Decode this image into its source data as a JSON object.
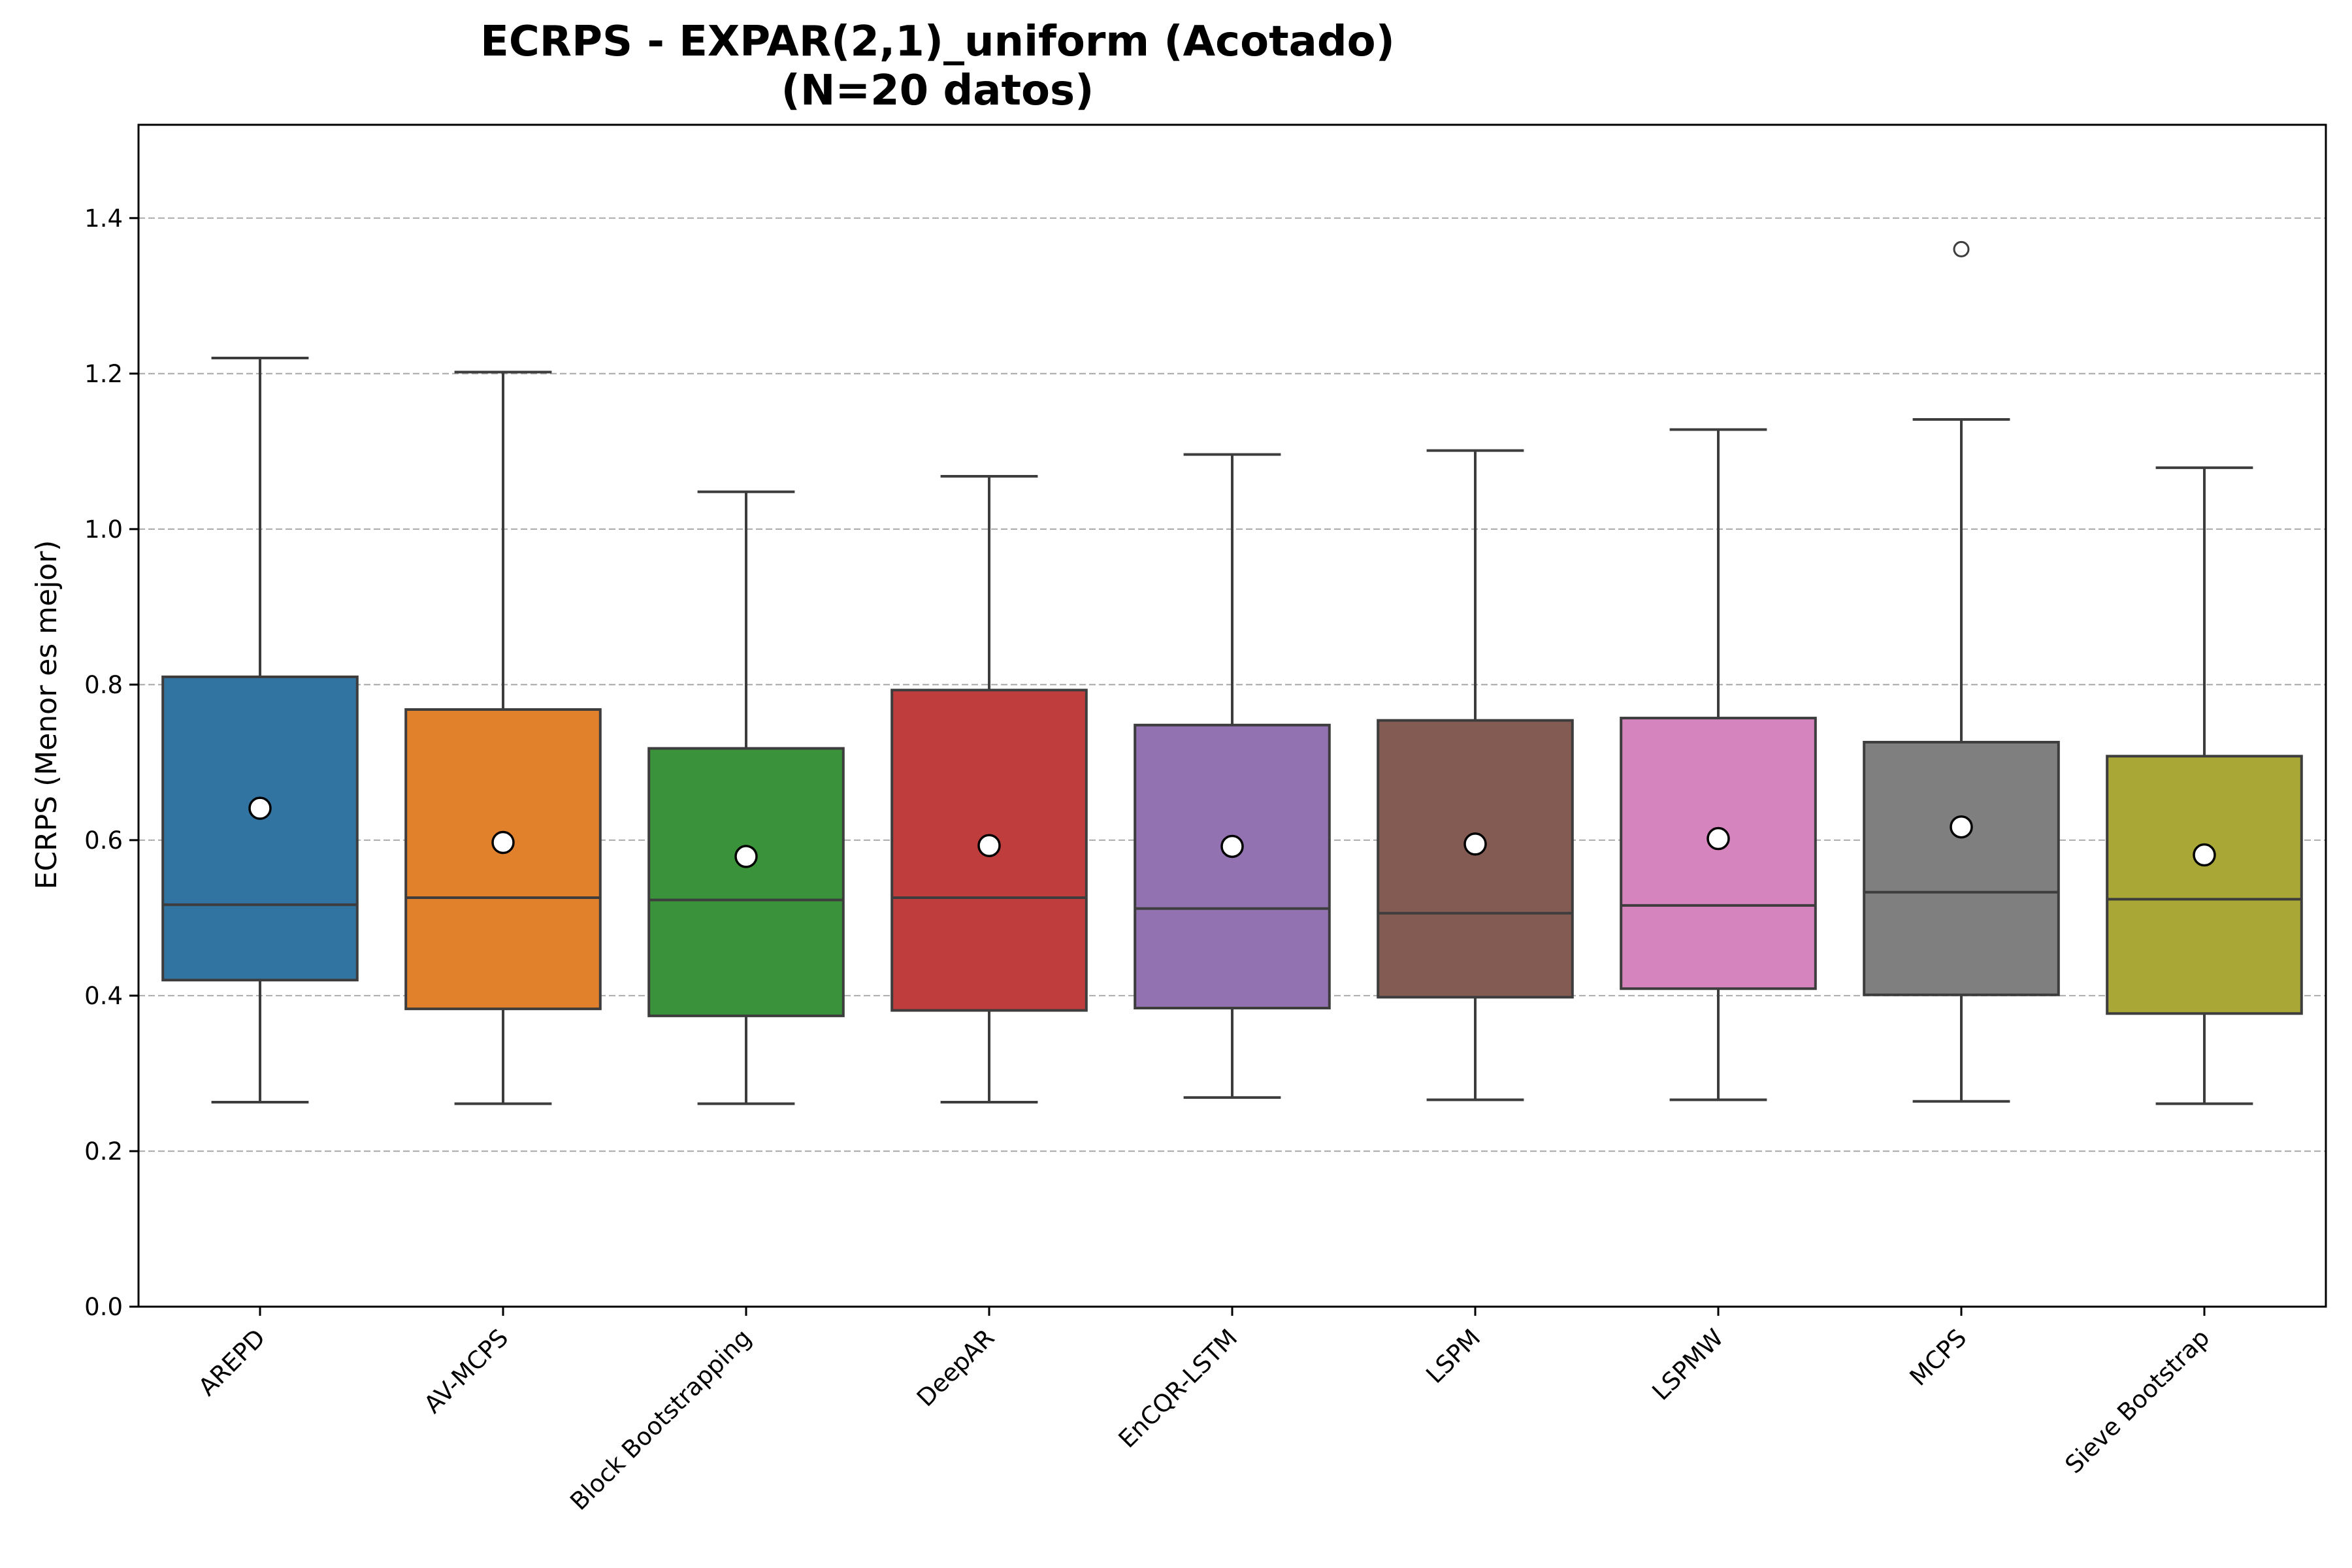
{
  "chart_data": {
    "type": "box",
    "title_line1": "ECRPS - EXPAR(2,1)_uniform (Acotado)",
    "title_line2": "(N=20 datos)",
    "xlabel": "",
    "ylabel": "ECRPS (Menor es mejor)",
    "ylim": [
      0,
      1.52
    ],
    "yticks": [
      "0.0",
      "0.2",
      "0.4",
      "0.6",
      "0.8",
      "1.0",
      "1.2",
      "1.4"
    ],
    "grid": "horizontal dashed",
    "series": [
      {
        "name": "AREPD",
        "color": "#3274a1",
        "whisker_low": 0.263,
        "q1": 0.42,
        "median": 0.517,
        "q3": 0.81,
        "whisker_high": 1.22,
        "mean": 0.641,
        "outliers": []
      },
      {
        "name": "AV-MCPS",
        "color": "#e1812c",
        "whisker_low": 0.261,
        "q1": 0.383,
        "median": 0.526,
        "q3": 0.768,
        "whisker_high": 1.202,
        "mean": 0.597,
        "outliers": []
      },
      {
        "name": "Block Bootstrapping",
        "color": "#3a923a",
        "whisker_low": 0.261,
        "q1": 0.374,
        "median": 0.523,
        "q3": 0.718,
        "whisker_high": 1.048,
        "mean": 0.579,
        "outliers": []
      },
      {
        "name": "DeepAR",
        "color": "#c03d3e",
        "whisker_low": 0.263,
        "q1": 0.381,
        "median": 0.526,
        "q3": 0.793,
        "whisker_high": 1.068,
        "mean": 0.593,
        "outliers": []
      },
      {
        "name": "EnCQR-LSTM",
        "color": "#9372b2",
        "whisker_low": 0.269,
        "q1": 0.384,
        "median": 0.512,
        "q3": 0.748,
        "whisker_high": 1.096,
        "mean": 0.592,
        "outliers": []
      },
      {
        "name": "LSPM",
        "color": "#845b53",
        "whisker_low": 0.266,
        "q1": 0.398,
        "median": 0.506,
        "q3": 0.754,
        "whisker_high": 1.101,
        "mean": 0.595,
        "outliers": []
      },
      {
        "name": "LSPMW",
        "color": "#d684bd",
        "whisker_low": 0.266,
        "q1": 0.409,
        "median": 0.516,
        "q3": 0.757,
        "whisker_high": 1.128,
        "mean": 0.602,
        "outliers": []
      },
      {
        "name": "MCPS",
        "color": "#7f7f7f",
        "whisker_low": 0.264,
        "q1": 0.401,
        "median": 0.533,
        "q3": 0.726,
        "whisker_high": 1.141,
        "mean": 0.617,
        "outliers": [
          1.36
        ]
      },
      {
        "name": "Sieve Bootstrap",
        "color": "#a9a837",
        "whisker_low": 0.261,
        "q1": 0.377,
        "median": 0.524,
        "q3": 0.708,
        "whisker_high": 1.079,
        "mean": 0.581,
        "outliers": []
      }
    ]
  }
}
